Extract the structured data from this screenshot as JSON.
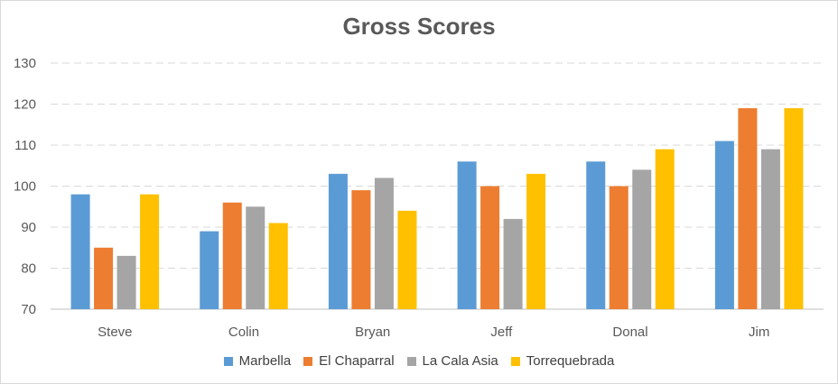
{
  "chart_data": {
    "type": "bar",
    "title": "Gross Scores",
    "xlabel": "",
    "ylabel": "",
    "categories": [
      "Steve",
      "Colin",
      "Bryan",
      "Jeff",
      "Donal",
      "Jim"
    ],
    "series": [
      {
        "name": "Marbella",
        "color": "#5b9bd5",
        "values": [
          98,
          89,
          103,
          106,
          106,
          111
        ]
      },
      {
        "name": "El Chaparral",
        "color": "#ed7d31",
        "values": [
          85,
          96,
          99,
          100,
          100,
          119
        ]
      },
      {
        "name": "La Cala Asia",
        "color": "#a5a5a5",
        "values": [
          83,
          95,
          102,
          92,
          104,
          109
        ]
      },
      {
        "name": "Torrequebrada",
        "color": "#ffc000",
        "values": [
          98,
          91,
          94,
          103,
          109,
          119
        ]
      }
    ],
    "ylim": [
      70,
      130
    ],
    "yticks": [
      "70",
      "80",
      "90",
      "100",
      "110",
      "120",
      "130"
    ],
    "grid": true,
    "legend_position": "bottom"
  }
}
